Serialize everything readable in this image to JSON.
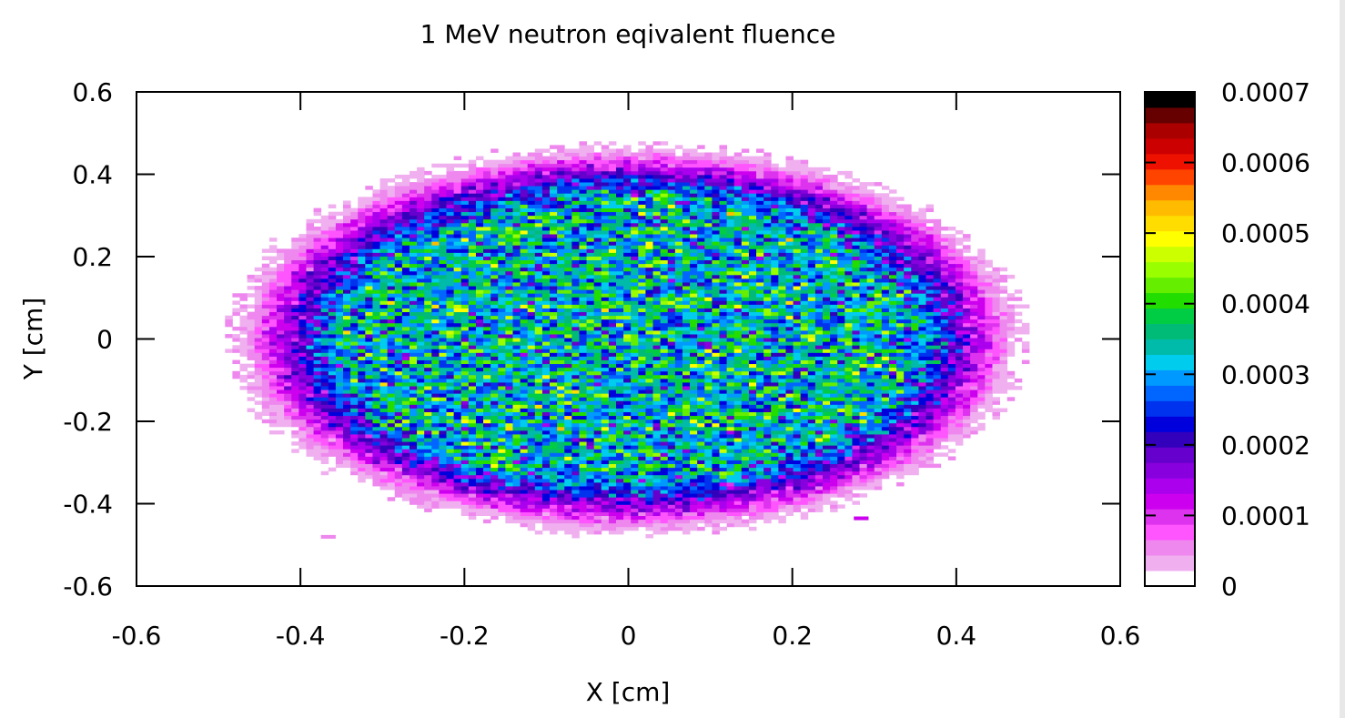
{
  "chart_data": {
    "type": "heatmap",
    "title": "1 MeV neutron eqivalent fluence",
    "xlabel": "X [cm]",
    "ylabel": "Y [cm]",
    "xlim": [
      -0.6,
      0.6
    ],
    "ylim": [
      -0.6,
      0.6
    ],
    "x_ticks": [
      -0.6,
      -0.4,
      -0.2,
      0,
      0.2,
      0.4,
      0.6
    ],
    "y_ticks": [
      -0.6,
      -0.4,
      -0.2,
      0,
      0.2,
      0.4,
      0.6
    ],
    "x_tick_labels": [
      "-0.6",
      "-0.4",
      "-0.2",
      "0",
      "0.2",
      "0.4",
      "0.6"
    ],
    "y_tick_labels": [
      "-0.6",
      "-0.4",
      "-0.2",
      "0",
      "0.2",
      "0.4",
      "0.6"
    ],
    "colorbar": {
      "range": [
        0,
        0.0007
      ],
      "ticks": [
        0,
        0.0001,
        0.0002,
        0.0003,
        0.0004,
        0.0005,
        0.0006,
        0.0007
      ],
      "tick_labels": [
        "0",
        "0.0001",
        "0.0002",
        "0.0003",
        "0.0004",
        "0.0005",
        "0.0006",
        "0.0007"
      ],
      "palette": [
        "#ffffff",
        "#f0b0f0",
        "#ee88ee",
        "#ff55ff",
        "#dd33ee",
        "#cc00ee",
        "#aa00ee",
        "#8800dd",
        "#6600cc",
        "#3300bb",
        "#0000dd",
        "#0033ee",
        "#0066ff",
        "#0099ff",
        "#00ccee",
        "#00bbaa",
        "#00bb77",
        "#00cc44",
        "#22dd00",
        "#66ee00",
        "#99ff00",
        "#ccff00",
        "#ffff00",
        "#ffdd00",
        "#ffbb00",
        "#ff8800",
        "#ff4400",
        "#ee1100",
        "#cc0000",
        "#aa0000",
        "#660000",
        "#000000"
      ]
    },
    "distribution": {
      "shape": "ellipse",
      "center": [
        0.0,
        0.0
      ],
      "semi_axis_x": 0.48,
      "semi_axis_y": 0.47,
      "core_level": 0.00033,
      "bin_size_cm": 0.009
    },
    "grid": false,
    "legend": "colorbar-right"
  }
}
